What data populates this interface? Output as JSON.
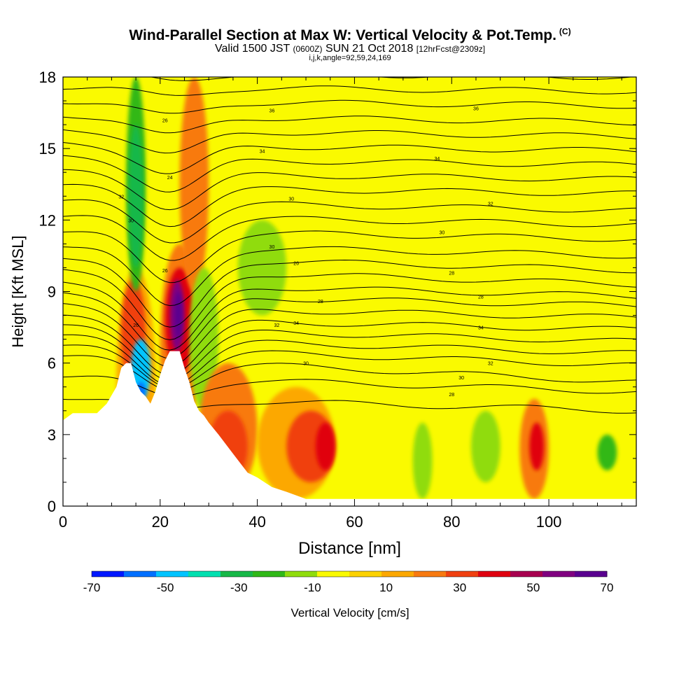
{
  "header": {
    "title": "Wind-Parallel Section at Max W: Vertical Velocity & Pot.Temp.",
    "copyright_mark": "(C)",
    "valid_prefix": "Valid 1500 JST",
    "valid_utc": "(0600Z)",
    "valid_date": "SUN 21 Oct 2018",
    "forecast_info": "[12hrFcst@2309z]",
    "indices": "i,j,k,angle=92,59,24,169"
  },
  "colorbar": {
    "label": "Vertical Velocity [cm/s]",
    "tick_labels": [
      "-70",
      "-50",
      "-30",
      "-10",
      "10",
      "30",
      "50",
      "70"
    ],
    "colors": [
      "#0018ff",
      "#0070ff",
      "#00c4ff",
      "#00e0b0",
      "#18b848",
      "#30b818",
      "#90dc0c",
      "#fafa00",
      "#fcd200",
      "#fca800",
      "#f87a10",
      "#f04010",
      "#e00010",
      "#a80050",
      "#800080",
      "#5a0090"
    ]
  },
  "chart_data": {
    "type": "heatmap",
    "title": "Wind-Parallel Section at Max W: Vertical Velocity & Pot.Temp.",
    "xlabel": "Distance [nm]",
    "ylabel": "Height [Kft MSL]",
    "xlim": [
      0,
      118
    ],
    "ylim": [
      0,
      18
    ],
    "x_ticks": [
      "0",
      "20",
      "40",
      "60",
      "80",
      "100"
    ],
    "y_ticks": [
      "0",
      "3",
      "6",
      "9",
      "12",
      "15",
      "18"
    ],
    "background_value_range": [
      -10,
      10
    ],
    "cells": [
      {
        "x": [
          11,
          19
        ],
        "y": [
          0.3,
          10.0
        ],
        "value": 15
      },
      {
        "x": [
          12,
          17
        ],
        "y": [
          5.0,
          9.5
        ],
        "value": 30
      },
      {
        "x": [
          13,
          17
        ],
        "y": [
          9,
          18
        ],
        "value": -30
      },
      {
        "x": [
          13.5,
          16.5
        ],
        "y": [
          10,
          16
        ],
        "value": -40
      },
      {
        "x": [
          14,
          18
        ],
        "y": [
          4.5,
          7
        ],
        "value": -55
      },
      {
        "x": [
          15,
          17
        ],
        "y": [
          4.4,
          5.2
        ],
        "value": -65
      },
      {
        "x": [
          20,
          28
        ],
        "y": [
          2.5,
          11
        ],
        "value": 20
      },
      {
        "x": [
          21,
          27
        ],
        "y": [
          5.5,
          10
        ],
        "value": 40
      },
      {
        "x": [
          22,
          25
        ],
        "y": [
          6.5,
          9.5
        ],
        "value": 60
      },
      {
        "x": [
          23,
          24.5
        ],
        "y": [
          7,
          9
        ],
        "value": 75
      },
      {
        "x": [
          24,
          30
        ],
        "y": [
          9,
          18
        ],
        "value": 25
      },
      {
        "x": [
          26,
          32
        ],
        "y": [
          4,
          10
        ],
        "value": -15
      },
      {
        "x": [
          28,
          40
        ],
        "y": [
          0.5,
          6
        ],
        "value": 20
      },
      {
        "x": [
          30,
          38
        ],
        "y": [
          1,
          4
        ],
        "value": 35
      },
      {
        "x": [
          36,
          46
        ],
        "y": [
          8,
          12
        ],
        "value": -15
      },
      {
        "x": [
          40,
          56
        ],
        "y": [
          0.3,
          5
        ],
        "value": 15
      },
      {
        "x": [
          46,
          56
        ],
        "y": [
          1,
          4
        ],
        "value": 30
      },
      {
        "x": [
          52,
          56
        ],
        "y": [
          1.5,
          3.5
        ],
        "value": 45
      },
      {
        "x": [
          60,
          68
        ],
        "y": [
          0.3,
          5
        ],
        "value": -5
      },
      {
        "x": [
          72,
          76
        ],
        "y": [
          0.3,
          3.5
        ],
        "value": -20
      },
      {
        "x": [
          84,
          90
        ],
        "y": [
          1,
          4
        ],
        "value": -15
      },
      {
        "x": [
          94,
          100
        ],
        "y": [
          0.3,
          4.5
        ],
        "value": 25
      },
      {
        "x": [
          96,
          99
        ],
        "y": [
          1.5,
          3.5
        ],
        "value": 40
      },
      {
        "x": [
          110,
          114
        ],
        "y": [
          1.5,
          3
        ],
        "value": -25
      }
    ],
    "terrain_top_kft": [
      {
        "x": 0,
        "y": 3.6
      },
      {
        "x": 2,
        "y": 3.9
      },
      {
        "x": 7,
        "y": 3.9
      },
      {
        "x": 9,
        "y": 4.3
      },
      {
        "x": 11,
        "y": 5.0
      },
      {
        "x": 12,
        "y": 5.8
      },
      {
        "x": 13,
        "y": 6.0
      },
      {
        "x": 14,
        "y": 6.0
      },
      {
        "x": 15,
        "y": 5.2
      },
      {
        "x": 16,
        "y": 4.8
      },
      {
        "x": 17,
        "y": 4.6
      },
      {
        "x": 18,
        "y": 4.3
      },
      {
        "x": 19,
        "y": 4.8
      },
      {
        "x": 20,
        "y": 5.5
      },
      {
        "x": 21,
        "y": 6.1
      },
      {
        "x": 22,
        "y": 6.5
      },
      {
        "x": 24,
        "y": 6.5
      },
      {
        "x": 25,
        "y": 5.8
      },
      {
        "x": 26,
        "y": 5.2
      },
      {
        "x": 27,
        "y": 4.4
      },
      {
        "x": 28,
        "y": 4.0
      },
      {
        "x": 29,
        "y": 3.8
      },
      {
        "x": 30,
        "y": 3.5
      },
      {
        "x": 32,
        "y": 3.0
      },
      {
        "x": 35,
        "y": 2.2
      },
      {
        "x": 38,
        "y": 1.4
      },
      {
        "x": 40,
        "y": 1.2
      },
      {
        "x": 43,
        "y": 0.8
      },
      {
        "x": 46,
        "y": 0.6
      },
      {
        "x": 50,
        "y": 0.3
      },
      {
        "x": 118,
        "y": 0.3
      }
    ],
    "theta_contours": [
      {
        "label": "28",
        "y0": 4.6,
        "y1": 4.0,
        "dip": 0.5,
        "lx": 80,
        "ly": 4.7
      },
      {
        "label": "30",
        "y0": 5.5,
        "y1": 4.8,
        "dip": 0.8,
        "lx": 50,
        "ly": 6.0
      },
      {
        "label": "30",
        "y0": 6.3,
        "y1": 5.2,
        "dip": 1.2,
        "lx": 82,
        "ly": 5.4
      },
      {
        "label": "32",
        "y0": 6.7,
        "y1": 5.9,
        "dip": 1.5,
        "lx": 88,
        "ly": 6.0
      },
      {
        "label": "32",
        "y0": 7.1,
        "y1": 6.4,
        "dip": 1.8,
        "lx": 44,
        "ly": 7.6
      },
      {
        "label": "34",
        "y0": 7.5,
        "y1": 6.9,
        "dip": 2.0,
        "lx": 86,
        "ly": 7.5
      },
      {
        "label": "34",
        "y0": 7.9,
        "y1": 7.4,
        "dip": 2.2,
        "lx": 48,
        "ly": 7.7
      },
      {
        "label": "26",
        "y0": 8.4,
        "y1": 7.9,
        "dip": 2.4,
        "lx": 15,
        "ly": 7.6
      },
      {
        "label": "28",
        "y0": 8.9,
        "y1": 8.4,
        "dip": 2.6,
        "lx": 53,
        "ly": 8.6
      },
      {
        "label": "28",
        "y0": 9.4,
        "y1": 8.8,
        "dip": 2.8,
        "lx": 86,
        "ly": 8.8
      },
      {
        "label": "28",
        "y0": 10.0,
        "y1": 9.3,
        "dip": 3.0,
        "lx": 80,
        "ly": 9.8
      },
      {
        "label": "26",
        "y0": 10.5,
        "y1": 9.9,
        "dip": 3.0,
        "lx": 48,
        "ly": 10.2
      },
      {
        "label": "26",
        "y0": 11.0,
        "y1": 10.5,
        "dip": 2.6,
        "lx": 21,
        "ly": 9.9
      },
      {
        "label": "30",
        "y0": 11.6,
        "y1": 11.2,
        "dip": 2.2,
        "lx": 43,
        "ly": 10.9
      },
      {
        "label": "30",
        "y0": 12.2,
        "y1": 11.8,
        "dip": 1.8,
        "lx": 78,
        "ly": 11.5
      },
      {
        "label": "30",
        "y0": 12.8,
        "y1": 12.4,
        "dip": 1.6,
        "lx": 14,
        "ly": 12.0
      },
      {
        "label": "32",
        "y0": 13.4,
        "y1": 13.1,
        "dip": 1.5,
        "lx": 12,
        "ly": 13.0
      },
      {
        "label": "32",
        "y0": 14.0,
        "y1": 13.7,
        "dip": 1.4,
        "lx": 88,
        "ly": 12.7
      },
      {
        "label": "24",
        "y0": 14.6,
        "y1": 14.3,
        "dip": 1.3,
        "lx": 22,
        "ly": 13.8
      },
      {
        "label": "30",
        "y0": 15.2,
        "y1": 14.9,
        "dip": 1.2,
        "lx": 47,
        "ly": 12.9
      },
      {
        "label": "34",
        "y0": 15.8,
        "y1": 15.5,
        "dip": 1.0,
        "lx": 77,
        "ly": 14.6
      },
      {
        "label": "34",
        "y0": 16.4,
        "y1": 16.1,
        "dip": 0.8,
        "lx": 41,
        "ly": 14.9
      },
      {
        "label": "36",
        "y0": 17.0,
        "y1": 16.8,
        "dip": 0.6,
        "lx": 43,
        "ly": 16.6
      },
      {
        "label": "36",
        "y0": 17.6,
        "y1": 17.4,
        "dip": 0.4,
        "lx": 85,
        "ly": 16.7
      },
      {
        "label": "26",
        "y0": 18.2,
        "y1": 18.0,
        "dip": 0.3,
        "lx": 21,
        "ly": 16.2
      }
    ]
  }
}
